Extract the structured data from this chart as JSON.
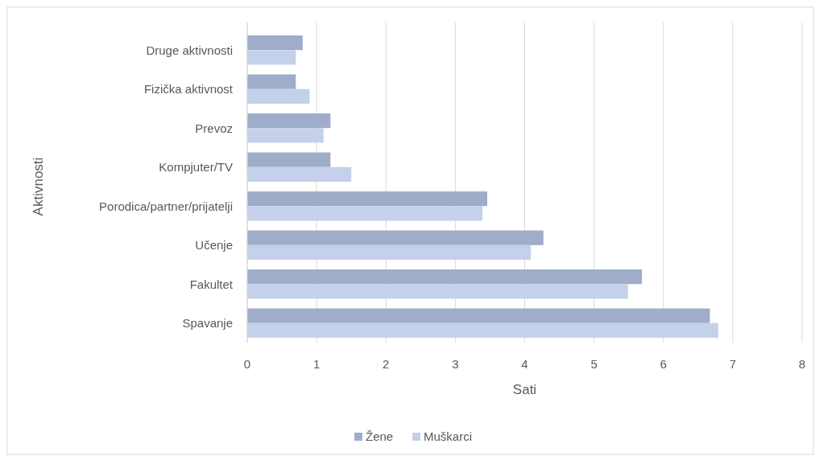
{
  "chart_data": {
    "type": "bar",
    "orientation": "horizontal",
    "xlabel": "Sati",
    "ylabel": "Aktivnosti",
    "categories": [
      "Druge aktivnosti",
      "Fizička aktivnost",
      "Prevoz",
      "Kompjuter/TV",
      "Porodica/partner/prijatelji",
      "Učenje",
      "Fakultet",
      "Spavanje"
    ],
    "series": [
      {
        "name": "Žene",
        "color": "#9facca",
        "values": [
          0.8,
          0.7,
          1.2,
          1.2,
          3.46,
          4.27,
          5.69,
          6.67
        ]
      },
      {
        "name": "Muškarci",
        "color": "#c5d0ea",
        "values": [
          0.7,
          0.9,
          1.1,
          1.5,
          3.39,
          4.09,
          5.49,
          6.79
        ]
      }
    ],
    "xlim": [
      0,
      8
    ],
    "xticks": [
      0,
      1,
      2,
      3,
      4,
      5,
      6,
      7,
      8
    ],
    "grid": "x",
    "legend": "bottom"
  }
}
